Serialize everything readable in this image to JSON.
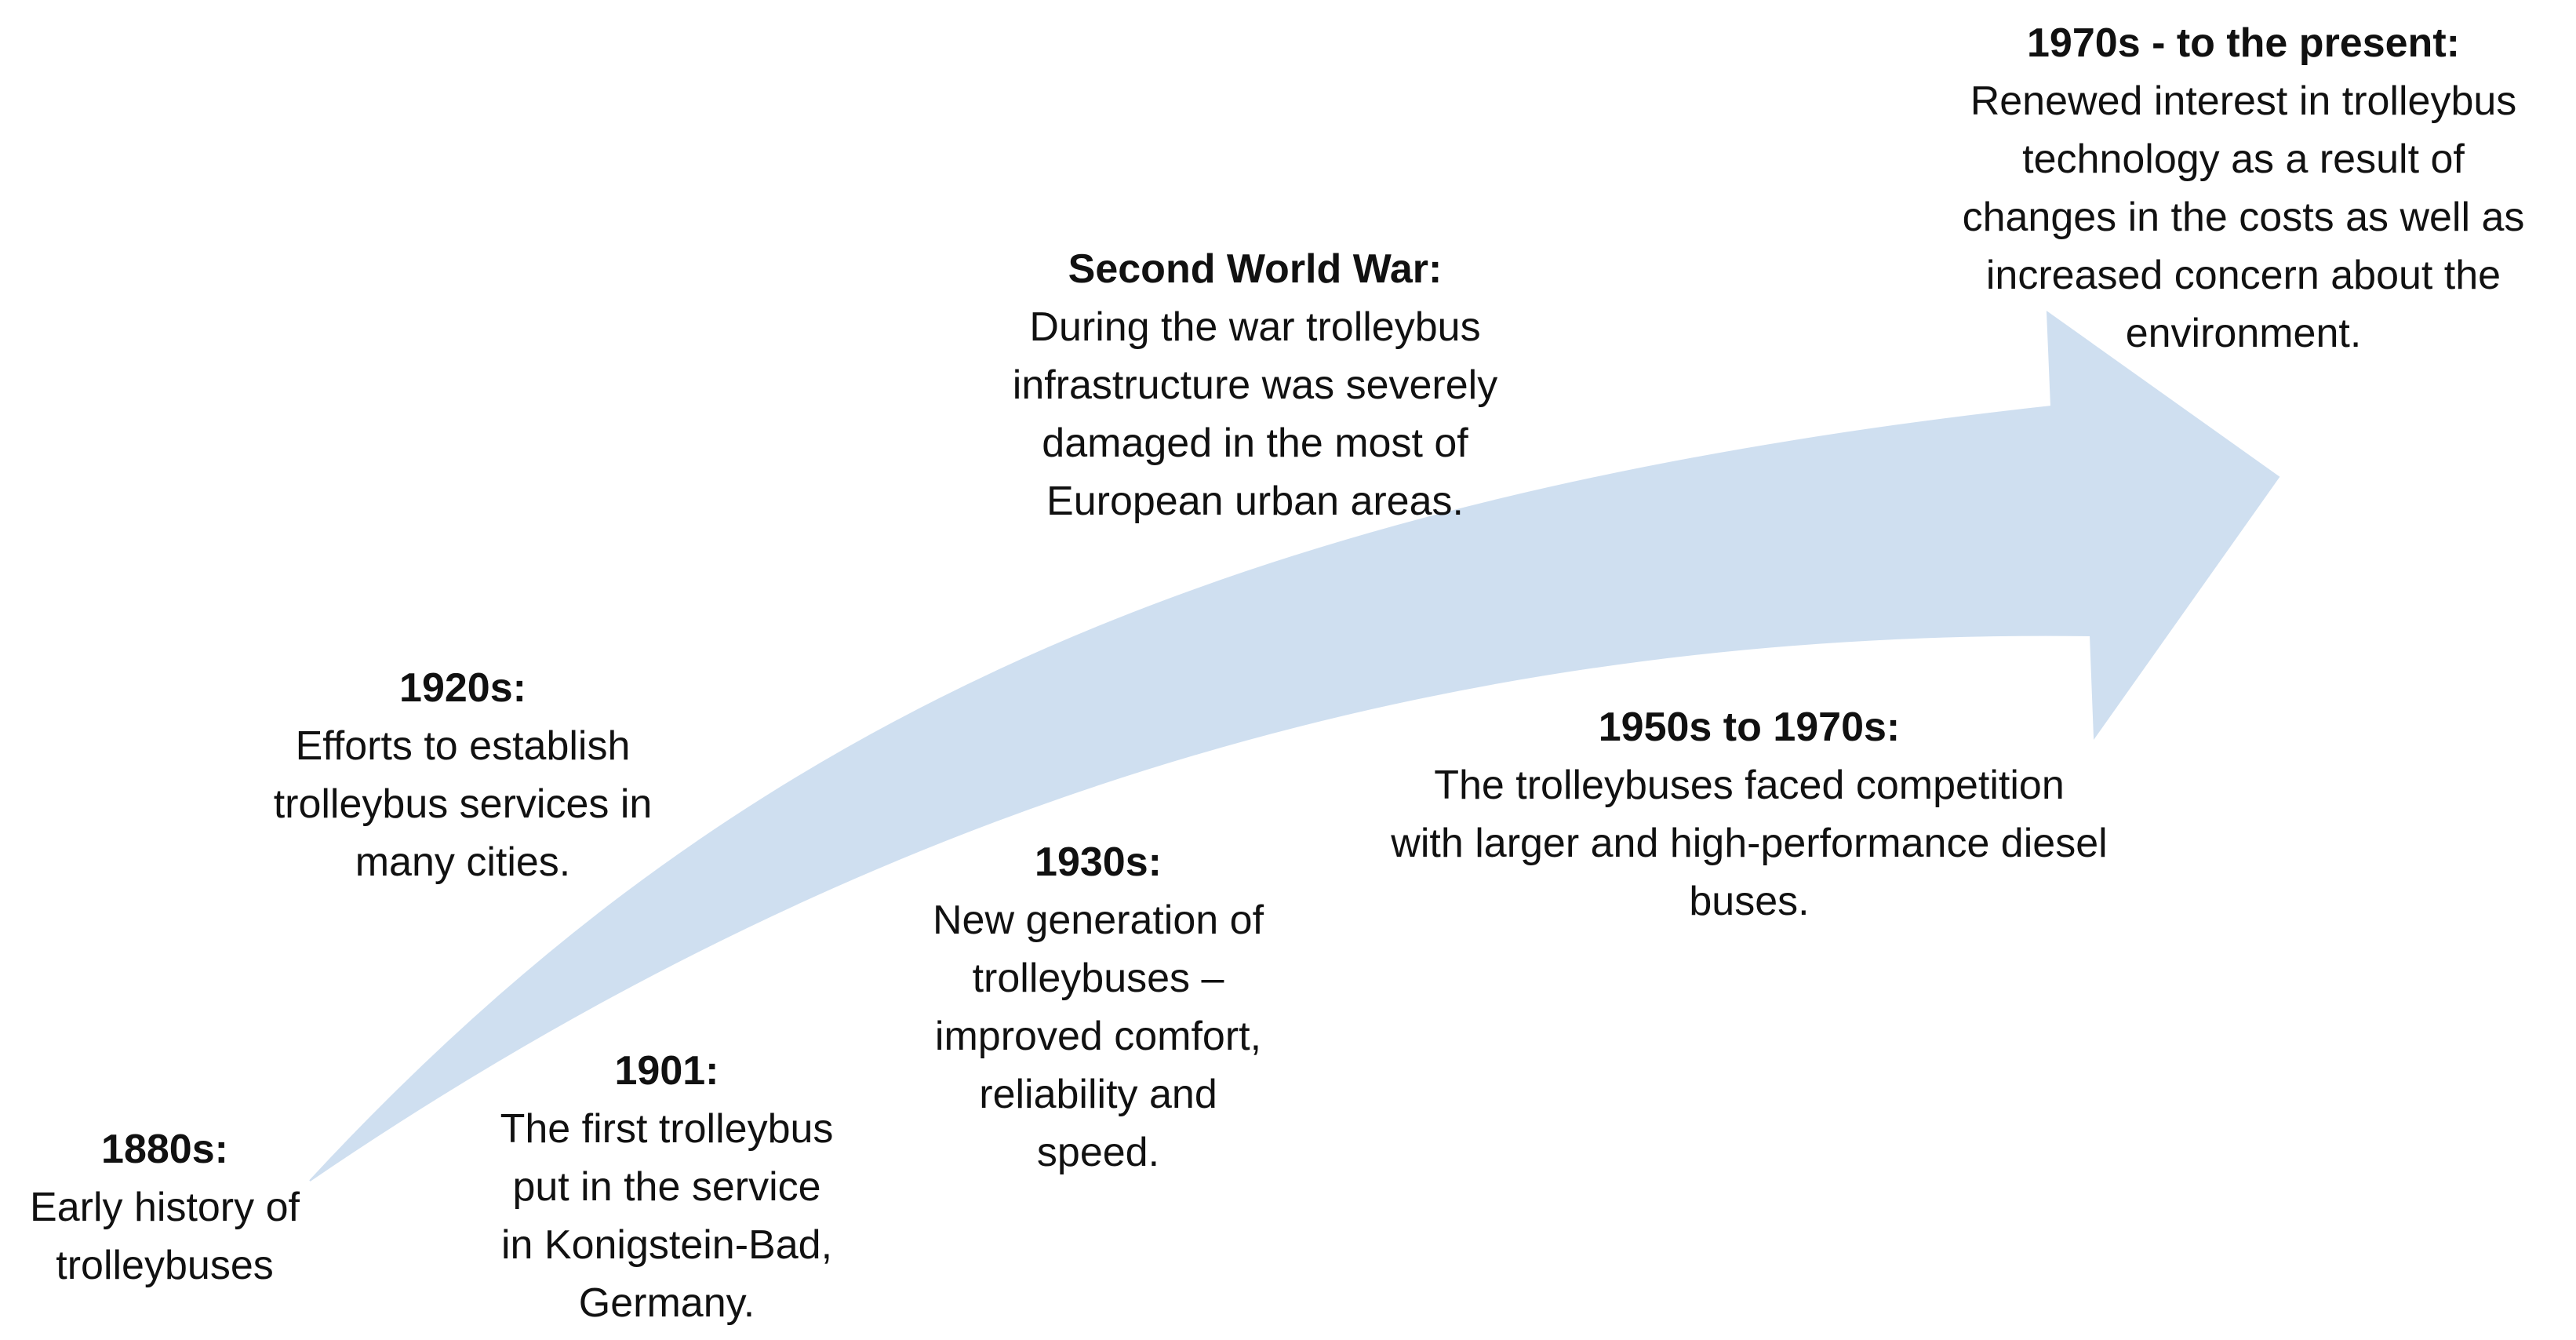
{
  "diagram": {
    "type": "timeline-arrow",
    "arrow_color": "#cfdff0",
    "milestones": [
      {
        "label": "1880s:",
        "lines": [
          "Early history of",
          "trolleybuses"
        ]
      },
      {
        "label": "1901:",
        "lines": [
          "The first trolleybus",
          "put in the service",
          "in Konigstein-Bad,",
          "Germany."
        ]
      },
      {
        "label": "1920s:",
        "lines": [
          "Efforts to establish",
          "trolleybus services in",
          "many cities."
        ]
      },
      {
        "label": "1930s:",
        "lines": [
          "New generation of",
          "trolleybuses –",
          "improved comfort,",
          "reliability and",
          "speed."
        ]
      },
      {
        "label": "Second World War:",
        "lines": [
          "During the war trolleybus",
          "infrastructure was severely",
          "damaged in the most of",
          "European urban areas."
        ]
      },
      {
        "label": "1950s to 1970s:",
        "lines": [
          "The trolleybuses faced competition",
          "with larger and high-performance diesel",
          "buses."
        ]
      },
      {
        "label": "1970s - to the present:",
        "lines": [
          "Renewed interest in trolleybus",
          "technology as a result of",
          "changes in the costs as well as",
          "increased concern about the",
          "environment."
        ]
      }
    ]
  }
}
